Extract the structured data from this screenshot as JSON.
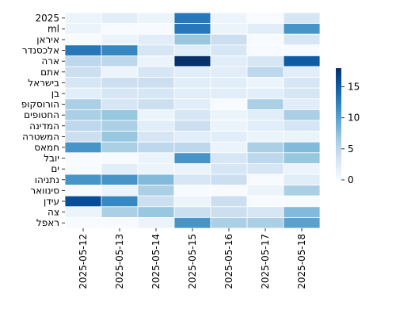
{
  "chart_data": {
    "type": "heatmap",
    "title": "",
    "xlabel": "",
    "ylabel": "",
    "x_categories": [
      "2025-05-12",
      "2025-05-13",
      "2025-05-14",
      "2025-05-15",
      "2025-05-16",
      "2025-05-17",
      "2025-05-18"
    ],
    "y_categories": [
      "2025",
      "ml",
      "איראן",
      "אלכסנדר",
      "ארה",
      "אתם",
      "בישראל",
      "בן",
      "הורוסקופ",
      "החטופים",
      "המדינה",
      "המשטרה",
      "חמאס",
      "יובל",
      "ים",
      "נתניהו",
      "סינוואר",
      "עידן",
      "צה",
      "ראפל"
    ],
    "values": [
      [
        1,
        2,
        1,
        13,
        1,
        0,
        3
      ],
      [
        1,
        0,
        0,
        13,
        1,
        2,
        11
      ],
      [
        0,
        1,
        2,
        7,
        4,
        0,
        3
      ],
      [
        13,
        12,
        3,
        2,
        3,
        0,
        0
      ],
      [
        5,
        5,
        1,
        18,
        2,
        3,
        15
      ],
      [
        4,
        1,
        3,
        2,
        2,
        5,
        2
      ],
      [
        3,
        4,
        4,
        2,
        2,
        1,
        3
      ],
      [
        2,
        3,
        3,
        2,
        2,
        2,
        3
      ],
      [
        6,
        3,
        4,
        2,
        0,
        6,
        2
      ],
      [
        6,
        7,
        1,
        3,
        1,
        2,
        6
      ],
      [
        5,
        6,
        2,
        4,
        1,
        2,
        3
      ],
      [
        4,
        7,
        3,
        2,
        2,
        1,
        1
      ],
      [
        11,
        6,
        5,
        5,
        1,
        6,
        8
      ],
      [
        0,
        0,
        1,
        11,
        3,
        5,
        7
      ],
      [
        0,
        2,
        1,
        1,
        3,
        3,
        1
      ],
      [
        11,
        11,
        8,
        3,
        4,
        0,
        2
      ],
      [
        0,
        1,
        6,
        0,
        0,
        1,
        6
      ],
      [
        16,
        12,
        4,
        1,
        4,
        0,
        0
      ],
      [
        1,
        6,
        7,
        4,
        4,
        3,
        8
      ],
      [
        0,
        0,
        1,
        11,
        6,
        6,
        10
      ]
    ],
    "vmin": 0,
    "vmax": 18,
    "colormap": "Blues",
    "colorbar_ticks": [
      0,
      5,
      10,
      15
    ],
    "colorbar_location": "right",
    "grid": false
  }
}
